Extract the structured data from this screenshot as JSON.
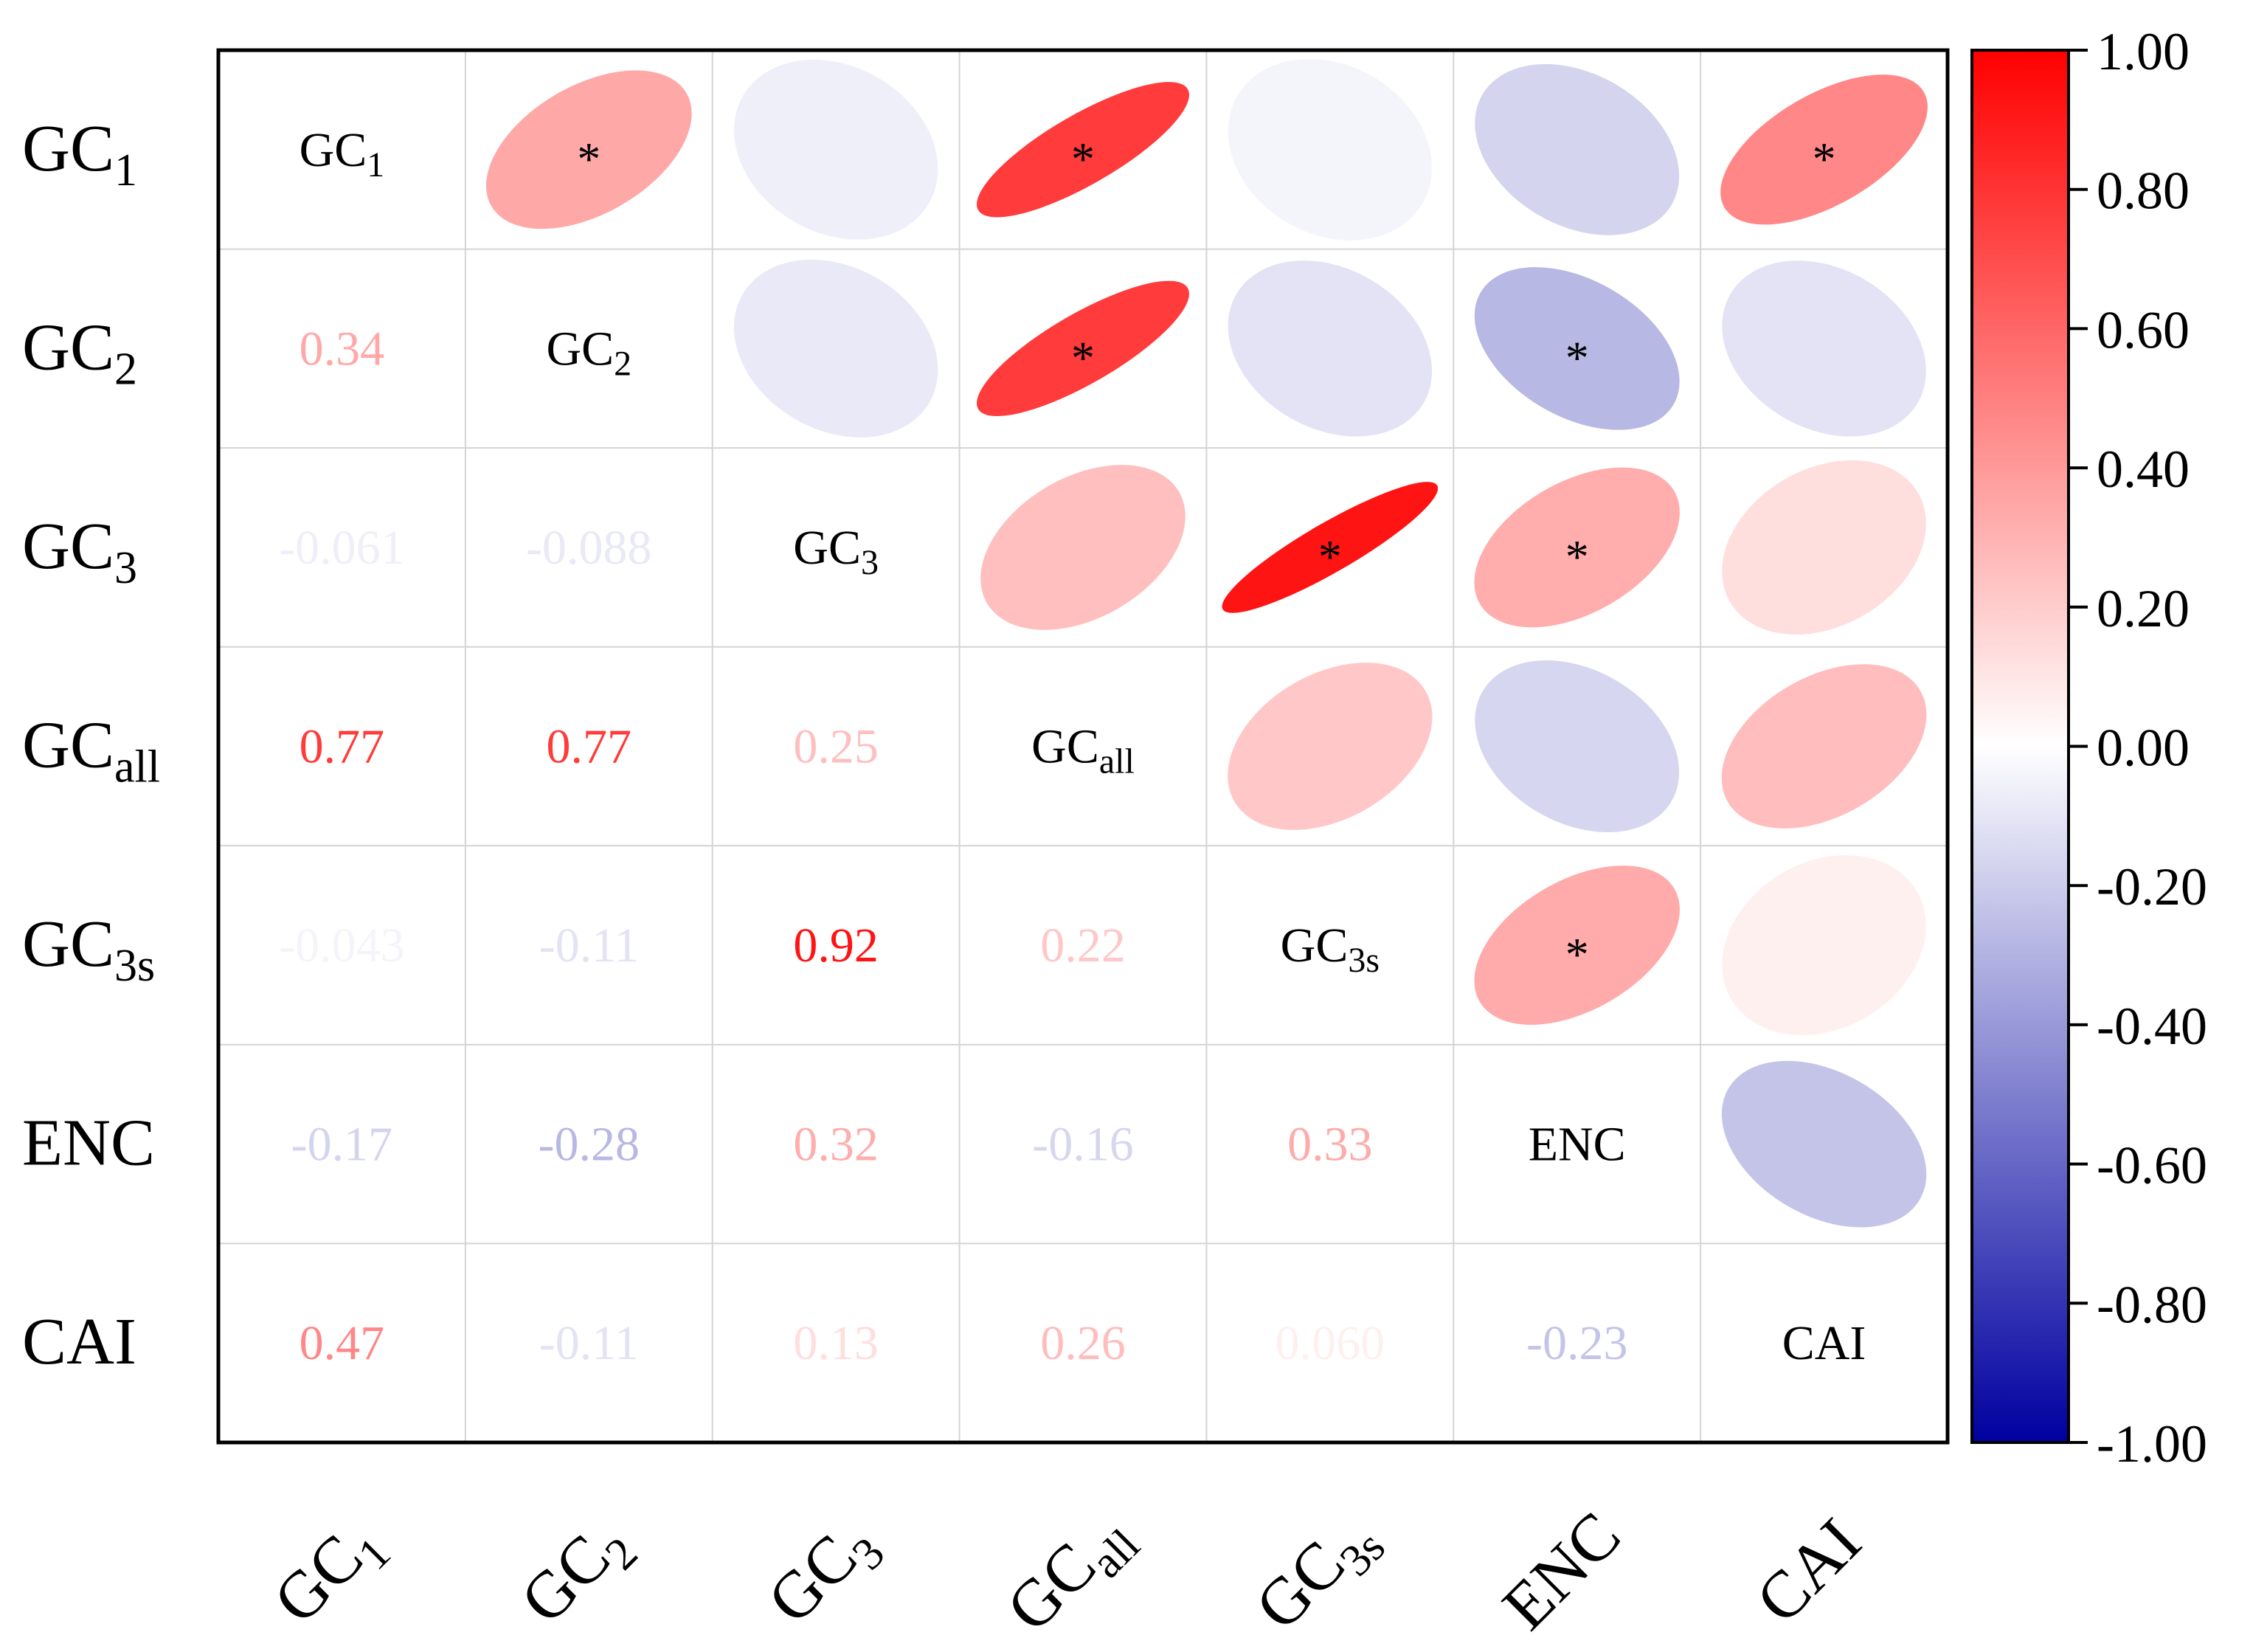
{
  "chart_data": {
    "type": "heatmap",
    "subtype": "correlation-matrix",
    "variables": [
      {
        "base": "GC",
        "sub": "1"
      },
      {
        "base": "GC",
        "sub": "2"
      },
      {
        "base": "GC",
        "sub": "3"
      },
      {
        "base": "GC",
        "sub": "all"
      },
      {
        "base": "GC",
        "sub": "3s"
      },
      {
        "base": "ENC",
        "sub": ""
      },
      {
        "base": "CAI",
        "sub": ""
      }
    ],
    "correlations": [
      [
        1.0,
        0.34,
        -0.061,
        0.77,
        -0.043,
        -0.17,
        0.47
      ],
      [
        0.34,
        1.0,
        -0.088,
        0.77,
        -0.11,
        -0.28,
        -0.11
      ],
      [
        -0.061,
        -0.088,
        1.0,
        0.25,
        0.92,
        0.32,
        0.13
      ],
      [
        0.77,
        0.77,
        0.25,
        1.0,
        0.22,
        -0.16,
        0.26
      ],
      [
        -0.043,
        -0.11,
        0.92,
        0.22,
        1.0,
        0.33,
        0.06
      ],
      [
        -0.17,
        -0.28,
        0.32,
        -0.16,
        0.33,
        1.0,
        -0.23
      ],
      [
        0.47,
        -0.11,
        0.13,
        0.26,
        0.06,
        -0.23,
        1.0
      ]
    ],
    "lower_triangle_labels": [
      [
        "",
        "",
        "",
        "",
        "",
        "",
        ""
      ],
      [
        "0.34",
        "",
        "",
        "",
        "",
        "",
        ""
      ],
      [
        "-0.061",
        "-0.088",
        "",
        "",
        "",
        "",
        ""
      ],
      [
        "0.77",
        "0.77",
        "0.25",
        "",
        "",
        "",
        ""
      ],
      [
        "-0.043",
        "-0.11",
        "0.92",
        "0.22",
        "",
        "",
        ""
      ],
      [
        "-0.17",
        "-0.28",
        "0.32",
        "-0.16",
        "0.33",
        "",
        ""
      ],
      [
        "0.47",
        "-0.11",
        "0.13",
        "0.26",
        "0.060",
        "-0.23",
        ""
      ]
    ],
    "significant_marker": "*",
    "significant_pairs": [
      [
        0,
        1
      ],
      [
        0,
        3
      ],
      [
        0,
        6
      ],
      [
        1,
        3
      ],
      [
        1,
        5
      ],
      [
        2,
        4
      ],
      [
        2,
        5
      ],
      [
        4,
        5
      ]
    ],
    "upper_triangle": "ellipse",
    "lower_triangle": "number",
    "colorbar": {
      "range": [
        -1.0,
        1.0
      ],
      "ticks": [
        "1.00",
        "0.80",
        "0.60",
        "0.40",
        "0.20",
        "0.00",
        "-0.20",
        "-0.40",
        "-0.60",
        "-0.80",
        "-1.00"
      ],
      "tick_values": [
        1.0,
        0.8,
        0.6,
        0.4,
        0.2,
        0.0,
        -0.2,
        -0.4,
        -0.6,
        -0.8,
        -1.0
      ],
      "colors": {
        "positive": "#ff0000",
        "zero": "#ffffff",
        "negative": "#0000a0"
      }
    }
  }
}
